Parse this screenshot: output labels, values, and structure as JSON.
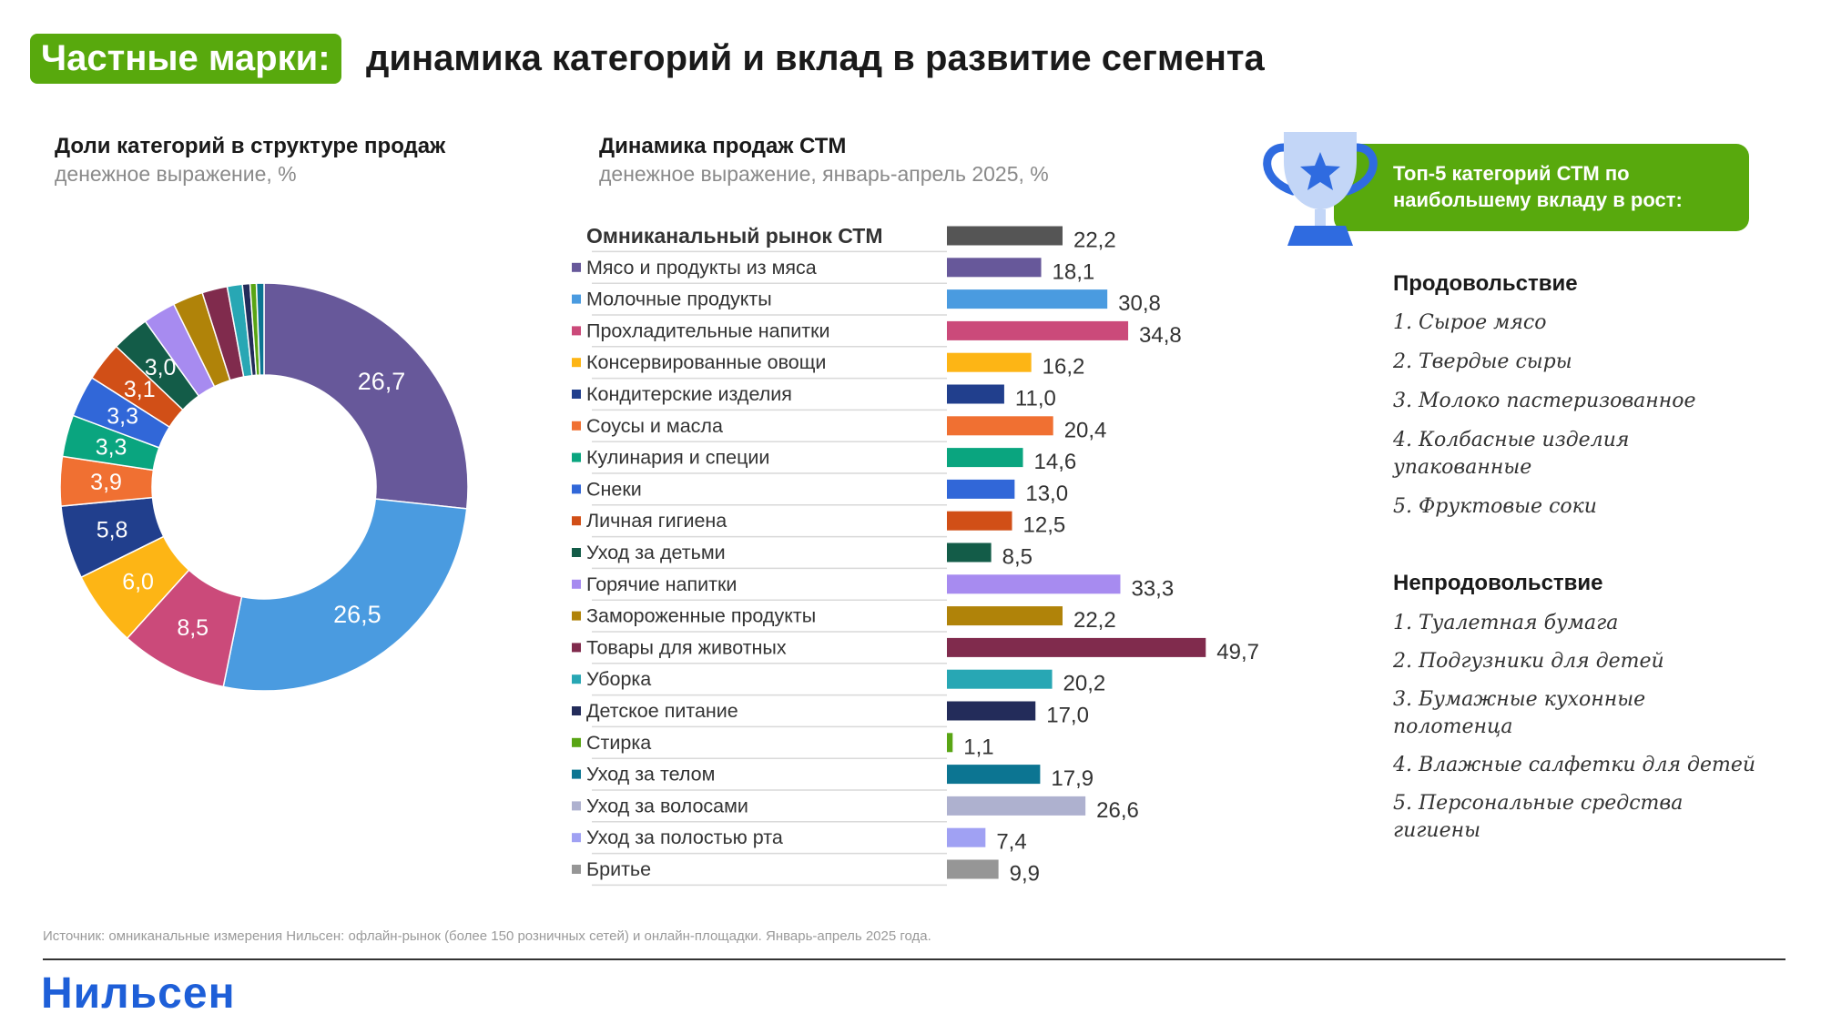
{
  "header": {
    "badge": "Частные марки:",
    "title": "динамика категорий и вклад в развитие сегмента"
  },
  "left_panel": {
    "title": "Доли категорий в структуре продаж",
    "subtitle": "денежное выражение, %"
  },
  "middle_panel": {
    "title": "Динамика продаж СТМ",
    "subtitle": "денежное выражение, январь-апрель 2025, %"
  },
  "right_panel": {
    "header": "Топ-5 категорий СТМ по наибольшему вкладу в рост:",
    "food": {
      "title": "Продовольствие",
      "items": [
        "1.   Сырое мясо",
        "2.   Твердые сыры",
        "3. Молоко пастеризованное",
        "4. Колбасные изделия упакованные",
        "5. Фруктовые соки"
      ]
    },
    "nonfood": {
      "title": "Непродовольствие",
      "items": [
        "1. Туалетная бумага",
        "2. Подгузники для детей",
        "3. Бумажные кухонные полотенца",
        "4. Влажные салфетки для детей",
        "5. Персональные средства гигиены"
      ]
    }
  },
  "source": "Источник: омниканальные измерения Нильсен: офлайн-рынок (более 150 розничных сетей) и онлайн-площадки. Январь-апрель 2025 года.",
  "logo": "Нильсен",
  "chart_data": [
    {
      "type": "pie",
      "title": "Доли категорий в структуре продаж",
      "subtitle": "денежное выражение, %",
      "donut": true,
      "categories": [
        "Мясо и продукты из мяса",
        "Молочные продукты",
        "Прохладительные напитки",
        "Консервированные овощи",
        "Кондитерские изделия",
        "Соусы и масла",
        "Кулинария и специи",
        "Снеки",
        "Личная гигиена",
        "Уход за детьми",
        "Горячие напитки",
        "Замороженные продукты",
        "Товары для животных",
        "Уборка",
        "Детское питание",
        "Стирка",
        "Уход за телом"
      ],
      "values": [
        26.7,
        26.5,
        8.5,
        6.0,
        5.8,
        3.9,
        3.3,
        3.3,
        3.1,
        3.0,
        2.6,
        2.4,
        2.0,
        1.2,
        0.6,
        0.5,
        0.6
      ],
      "labels": [
        "26,7",
        "26,5",
        "8,5",
        "6,0",
        "5,8",
        "3,9",
        "3,3",
        "3,3",
        "3,1",
        "3,0",
        "",
        "",
        "",
        "",
        "",
        "",
        ""
      ],
      "colors": [
        "#67589a",
        "#4a9be0",
        "#cb4a7a",
        "#fdb515",
        "#213f8d",
        "#f07032",
        "#0aa57f",
        "#3167d8",
        "#d14f17",
        "#135c48",
        "#a78bf0",
        "#b08309",
        "#802b4d",
        "#28a7b4",
        "#232c5a",
        "#59a514",
        "#0c7592"
      ]
    },
    {
      "type": "bar",
      "orientation": "horizontal",
      "title": "Динамика продаж СТМ",
      "subtitle": "денежное выражение, январь-апрель 2025, %",
      "categories": [
        "Омниканальный рынок СТМ",
        "Мясо и продукты из мяса",
        "Молочные продукты",
        "Прохладительные напитки",
        "Консервированные овощи",
        "Кондитерские изделия",
        "Соусы и масла",
        "Кулинария и специи",
        "Снеки",
        "Личная гигиена",
        "Уход за детьми",
        "Горячие напитки",
        "Замороженные продукты",
        "Товары для животных",
        "Уборка",
        "Детское питание",
        "Стирка",
        "Уход за телом",
        "Уход за волосами",
        "Уход за полостью рта",
        "Бритье"
      ],
      "values": [
        22.2,
        18.1,
        30.8,
        34.8,
        16.2,
        11.0,
        20.4,
        14.6,
        13.0,
        12.5,
        8.5,
        33.3,
        22.2,
        49.7,
        20.2,
        17.0,
        1.1,
        17.9,
        26.6,
        7.4,
        9.9
      ],
      "labels": [
        "22,2",
        "18,1",
        "30,8",
        "34,8",
        "16,2",
        "11,0",
        "20,4",
        "14,6",
        "13,0",
        "12,5",
        "8,5",
        "33,3",
        "22,2",
        "49,7",
        "20,2",
        "17,0",
        "1,1",
        "17,9",
        "26,6",
        "7,4",
        "9,9"
      ],
      "colors": [
        "#555555",
        "#67589a",
        "#4a9be0",
        "#cb4a7a",
        "#fdb515",
        "#213f8d",
        "#f07032",
        "#0aa57f",
        "#3167d8",
        "#d14f17",
        "#135c48",
        "#a78bf0",
        "#b08309",
        "#802b4d",
        "#28a7b4",
        "#232c5a",
        "#59a514",
        "#0c7592",
        "#aeb1cf",
        "#a0a1f3",
        "#969696"
      ]
    }
  ]
}
